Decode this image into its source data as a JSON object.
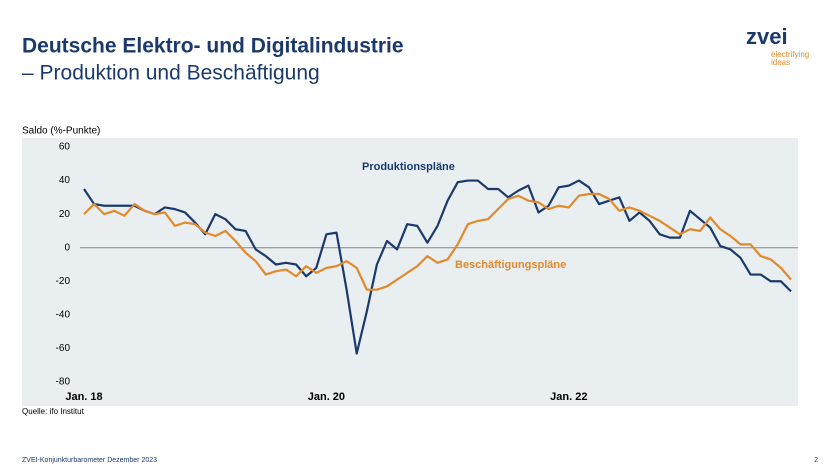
{
  "header": {
    "title": "Deutsche Elektro- und Digitalindustrie",
    "subtitle": "– Produktion und Beschäftigung"
  },
  "logo": {
    "name": "zvei",
    "tagline_1": "electrifying",
    "tagline_2": "ideas"
  },
  "chart_data": {
    "type": "line",
    "ylabel": "Saldo (%-Punkte)",
    "categories": [
      "Jan. 18",
      null,
      null,
      null,
      null,
      null,
      null,
      null,
      null,
      null,
      null,
      null,
      null,
      null,
      null,
      null,
      null,
      null,
      null,
      null,
      null,
      null,
      null,
      null,
      "Jan. 20",
      null,
      null,
      null,
      null,
      null,
      null,
      null,
      null,
      null,
      null,
      null,
      null,
      null,
      null,
      null,
      null,
      null,
      null,
      null,
      null,
      null,
      null,
      null,
      "Jan. 22",
      null,
      null,
      null,
      null,
      null,
      null,
      null,
      null,
      null,
      null,
      null,
      null,
      null,
      null,
      null,
      null,
      null,
      null,
      null,
      null,
      null,
      null
    ],
    "series": [
      {
        "name": "Produktionspläne",
        "color": "#1b3a6b",
        "values": [
          35,
          26,
          25,
          25,
          25,
          25,
          22,
          20,
          24,
          23,
          21,
          15,
          8,
          20,
          17,
          11,
          10,
          -1,
          -5,
          -10,
          -9,
          -10,
          -17,
          -12,
          8,
          9,
          -25,
          -63,
          -38,
          -10,
          4,
          -1,
          14,
          13,
          3,
          13,
          28,
          39,
          40,
          40,
          35,
          35,
          30,
          34,
          37,
          21,
          25,
          36,
          37,
          40,
          36,
          26,
          28,
          30,
          16,
          21,
          16,
          8,
          6,
          6,
          22,
          17,
          12,
          1,
          -1,
          -6,
          -16,
          -16,
          -20,
          -20,
          -26
        ]
      },
      {
        "name": "Beschäftigungspläne",
        "color": "#e08a2c",
        "values": [
          20,
          26,
          20,
          22,
          19,
          26,
          22,
          20,
          21,
          13,
          15,
          14,
          9,
          7,
          10,
          4,
          -3,
          -8,
          -16,
          -14,
          -13,
          -17,
          -11,
          -15,
          -12,
          -11,
          -8,
          -12,
          -25,
          -25,
          -23,
          -19,
          -15,
          -11,
          -5,
          -9,
          -7,
          2,
          14,
          16,
          17,
          23,
          29,
          31,
          28,
          27,
          23,
          25,
          24,
          31,
          32,
          32,
          29,
          22,
          24,
          22,
          19,
          16,
          12,
          8,
          11,
          10,
          18,
          11,
          7,
          2,
          2,
          -5,
          -7,
          -12,
          -19
        ]
      }
    ],
    "ylim": [
      -80,
      60
    ],
    "yticks": [
      -80,
      -60,
      -40,
      -20,
      0,
      20,
      40,
      60
    ],
    "grid": false
  },
  "footer": {
    "source": "Quelle: ifo Institut",
    "publication": "ZVEI-Konjunkturbarometer Dezember 2023",
    "page": "2"
  }
}
